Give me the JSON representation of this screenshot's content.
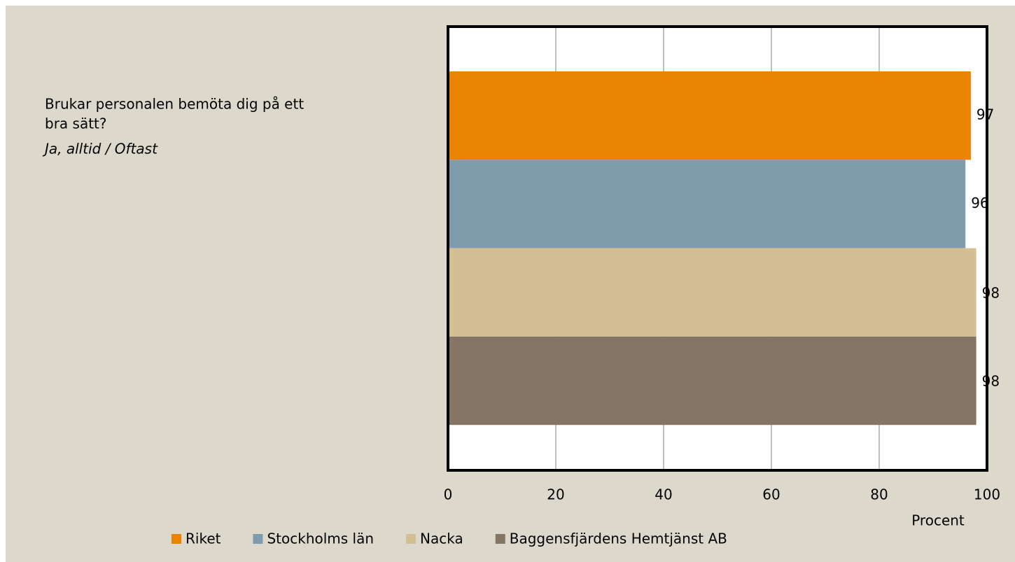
{
  "chart_data": {
    "type": "barh",
    "title": "Brukar personalen bemöta dig på ett bra sätt?",
    "subtitle": "Ja, alltid / Oftast",
    "xlabel": "Procent",
    "xlim": [
      0,
      100
    ],
    "xticks": [
      0,
      20,
      40,
      60,
      80,
      100
    ],
    "grid": true,
    "legend": "bottom",
    "series": [
      {
        "name": "Riket",
        "color": "#e98300",
        "values": [
          97
        ]
      },
      {
        "name": "Stockholms län",
        "color": "#7f9cad",
        "values": [
          96
        ]
      },
      {
        "name": "Nacka",
        "color": "#d4bf95",
        "values": [
          98
        ]
      },
      {
        "name": "Baggensfjärdens Hemtjänst AB",
        "color": "#857565",
        "values": [
          98
        ]
      }
    ]
  }
}
